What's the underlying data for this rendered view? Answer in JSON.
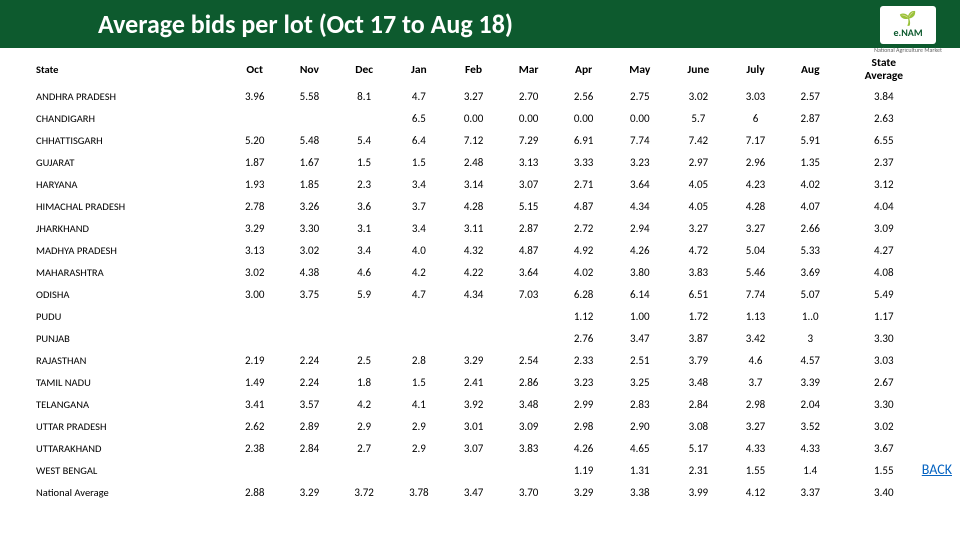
{
  "header": {
    "title": "Average bids per lot (Oct 17 to Aug 18)",
    "logo_text": "e.NAM",
    "logo_sub": "National Agriculture Market"
  },
  "back_label": "BACK",
  "table": {
    "columns": [
      "State",
      "Oct",
      "Nov",
      "Dec",
      "Jan",
      "Feb",
      "Mar",
      "Apr",
      "May",
      "June",
      "July",
      "Aug",
      "State Average"
    ],
    "rows": [
      {
        "label": "ANDHRA PRADESH",
        "cells": [
          "3.96",
          "5.58",
          "8.1",
          "4.7",
          "3.27",
          "2.70",
          "2.56",
          "2.75",
          "3.02",
          "3.03",
          "2.57",
          "3.84"
        ]
      },
      {
        "label": "CHANDIGARH",
        "cells": [
          "",
          "",
          "",
          "6.5",
          "0.00",
          "0.00",
          "0.00",
          "0.00",
          "5.7",
          "6",
          "2.87",
          "2.63"
        ]
      },
      {
        "label": "CHHATTISGARH",
        "cells": [
          "5.20",
          "5.48",
          "5.4",
          "6.4",
          "7.12",
          "7.29",
          "6.91",
          "7.74",
          "7.42",
          "7.17",
          "5.91",
          "6.55"
        ]
      },
      {
        "label": "GUJARAT",
        "cells": [
          "1.87",
          "1.67",
          "1.5",
          "1.5",
          "2.48",
          "3.13",
          "3.33",
          "3.23",
          "2.97",
          "2.96",
          "1.35",
          "2.37"
        ]
      },
      {
        "label": "HARYANA",
        "cells": [
          "1.93",
          "1.85",
          "2.3",
          "3.4",
          "3.14",
          "3.07",
          "2.71",
          "3.64",
          "4.05",
          "4.23",
          "4.02",
          "3.12"
        ]
      },
      {
        "label": "HIMACHAL PRADESH",
        "cells": [
          "2.78",
          "3.26",
          "3.6",
          "3.7",
          "4.28",
          "5.15",
          "4.87",
          "4.34",
          "4.05",
          "4.28",
          "4.07",
          "4.04"
        ]
      },
      {
        "label": "JHARKHAND",
        "cells": [
          "3.29",
          "3.30",
          "3.1",
          "3.4",
          "3.11",
          "2.87",
          "2.72",
          "2.94",
          "3.27",
          "3.27",
          "2.66",
          "3.09"
        ]
      },
      {
        "label": "MADHYA PRADESH",
        "cells": [
          "3.13",
          "3.02",
          "3.4",
          "4.0",
          "4.32",
          "4.87",
          "4.92",
          "4.26",
          "4.72",
          "5.04",
          "5.33",
          "4.27"
        ]
      },
      {
        "label": "MAHARASHTRA",
        "cells": [
          "3.02",
          "4.38",
          "4.6",
          "4.2",
          "4.22",
          "3.64",
          "4.02",
          "3.80",
          "3.83",
          "5.46",
          "3.69",
          "4.08"
        ]
      },
      {
        "label": "ODISHA",
        "cells": [
          "3.00",
          "3.75",
          "5.9",
          "4.7",
          "4.34",
          "7.03",
          "6.28",
          "6.14",
          "6.51",
          "7.74",
          "5.07",
          "5.49"
        ]
      },
      {
        "label": "PUDU",
        "cells": [
          "",
          "",
          "",
          "",
          "",
          "",
          "1.12",
          "1.00",
          "1.72",
          "1.13",
          "1..0",
          "1.17"
        ]
      },
      {
        "label": "PUNJAB",
        "cells": [
          "",
          "",
          "",
          "",
          "",
          "",
          "2.76",
          "3.47",
          "3.87",
          "3.42",
          "3",
          "3.30"
        ]
      },
      {
        "label": "RAJASTHAN",
        "cells": [
          "2.19",
          "2.24",
          "2.5",
          "2.8",
          "3.29",
          "2.54",
          "2.33",
          "2.51",
          "3.79",
          "4.6",
          "4.57",
          "3.03"
        ]
      },
      {
        "label": "TAMIL NADU",
        "cells": [
          "1.49",
          "2.24",
          "1.8",
          "1.5",
          "2.41",
          "2.86",
          "3.23",
          "3.25",
          "3.48",
          "3.7",
          "3.39",
          "2.67"
        ]
      },
      {
        "label": "TELANGANA",
        "cells": [
          "3.41",
          "3.57",
          "4.2",
          "4.1",
          "3.92",
          "3.48",
          "2.99",
          "2.83",
          "2.84",
          "2.98",
          "2.04",
          "3.30"
        ]
      },
      {
        "label": "UTTAR PRADESH",
        "cells": [
          "2.62",
          "2.89",
          "2.9",
          "2.9",
          "3.01",
          "3.09",
          "2.98",
          "2.90",
          "3.08",
          "3.27",
          "3.52",
          "3.02"
        ]
      },
      {
        "label": "UTTARAKHAND",
        "cells": [
          "2.38",
          "2.84",
          "2.7",
          "2.9",
          "3.07",
          "3.83",
          "4.26",
          "4.65",
          "5.17",
          "4.33",
          "4.33",
          "3.67"
        ]
      },
      {
        "label": "WEST BENGAL",
        "cells": [
          "",
          "",
          "",
          "",
          "",
          "",
          "1.19",
          "1.31",
          "2.31",
          "1.55",
          "1.4",
          "1.55"
        ]
      },
      {
        "label": "National Average",
        "cells": [
          "2.88",
          "3.29",
          "3.72",
          "3.78",
          "3.47",
          "3.70",
          "3.29",
          "3.38",
          "3.99",
          "4.12",
          "3.37",
          "3.40"
        ]
      }
    ]
  },
  "colors": {
    "header_bg": "#0d5a2e",
    "link": "#0563c1"
  }
}
